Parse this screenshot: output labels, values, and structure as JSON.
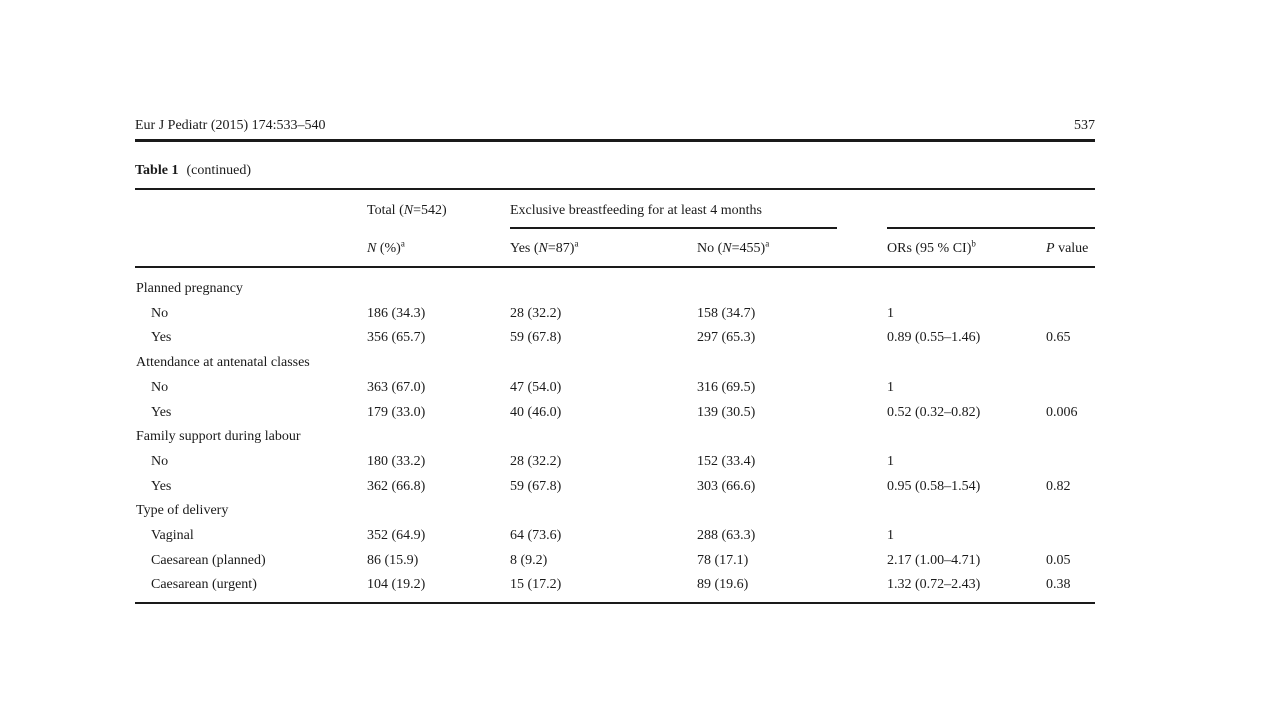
{
  "header": {
    "journal": "Eur J Pediatr (2015) 174:533–540",
    "page": "537"
  },
  "caption": {
    "label": "Table 1",
    "text": "(continued)"
  },
  "columns": {
    "total_group": {
      "pre": "Total (",
      "n": "N",
      "post": "=542)"
    },
    "ebf_group": "Exclusive breastfeeding for at least 4 months",
    "n_pct": {
      "n": "N",
      "post": " (%)",
      "sup": "a"
    },
    "yes": {
      "pre": "Yes (",
      "n": "N",
      "post": "=87)",
      "sup": "a"
    },
    "no": {
      "pre": "No (",
      "n": "N",
      "post": "=455)",
      "sup": "a"
    },
    "or": {
      "pre": "ORs (95 % CI)",
      "sup": "b"
    },
    "p": {
      "p": "P",
      "post": " value"
    }
  },
  "rows": [
    {
      "label": "Planned pregnancy",
      "section": true
    },
    {
      "label": "No",
      "total": "186 (34.3)",
      "yes": "28 (32.2)",
      "no": "158 (34.7)",
      "or": "1",
      "p": ""
    },
    {
      "label": "Yes",
      "total": "356 (65.7)",
      "yes": "59 (67.8)",
      "no": "297 (65.3)",
      "or": "0.89 (0.55–1.46)",
      "p": "0.65"
    },
    {
      "label": "Attendance at antenatal classes",
      "section": true
    },
    {
      "label": "No",
      "total": "363 (67.0)",
      "yes": "47 (54.0)",
      "no": "316 (69.5)",
      "or": "1",
      "p": ""
    },
    {
      "label": "Yes",
      "total": "179 (33.0)",
      "yes": "40 (46.0)",
      "no": "139 (30.5)",
      "or": "0.52 (0.32–0.82)",
      "p": "0.006"
    },
    {
      "label": "Family support during labour",
      "section": true
    },
    {
      "label": "No",
      "total": "180 (33.2)",
      "yes": "28 (32.2)",
      "no": "152 (33.4)",
      "or": "1",
      "p": ""
    },
    {
      "label": "Yes",
      "total": "362 (66.8)",
      "yes": "59 (67.8)",
      "no": "303 (66.6)",
      "or": "0.95 (0.58–1.54)",
      "p": "0.82"
    },
    {
      "label": "Type of delivery",
      "section": true
    },
    {
      "label": "Vaginal",
      "total": "352 (64.9)",
      "yes": "64 (73.6)",
      "no": "288 (63.3)",
      "or": "1",
      "p": ""
    },
    {
      "label": "Caesarean (planned)",
      "total": "86 (15.9)",
      "yes": "8 (9.2)",
      "no": "78 (17.1)",
      "or": "2.17 (1.00–4.71)",
      "p": "0.05"
    },
    {
      "label": "Caesarean (urgent)",
      "total": "104 (19.2)",
      "yes": "15 (17.2)",
      "no": "89 (19.6)",
      "or": "1.32 (0.72–2.43)",
      "p": "0.38"
    }
  ]
}
